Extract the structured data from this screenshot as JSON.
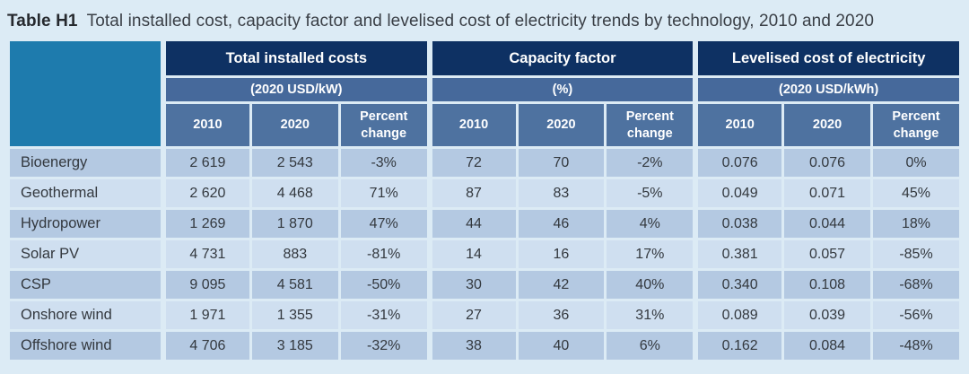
{
  "title": {
    "label": "Table H1",
    "text": "Total installed cost, capacity factor and levelised cost of electricity trends by technology, 2010 and 2020"
  },
  "colors": {
    "page_bg": "#dcebf5",
    "corner_cell_bg": "#1e7bad",
    "group_header_bg": "#0e3163",
    "unit_row_bg": "#46699b",
    "subheader_bg": "#4e72a0",
    "row_dark_bg": "#b4c9e2",
    "row_light_bg": "#cfdff0",
    "header_text": "#ffffff",
    "body_text": "#33383e"
  },
  "table": {
    "groups": [
      {
        "label": "Total installed costs",
        "unit": "(2020 USD/kW)"
      },
      {
        "label": "Capacity factor",
        "unit": "(%)"
      },
      {
        "label": "Levelised cost of electricity",
        "unit": "(2020 USD/kWh)"
      }
    ],
    "subheaders": [
      "2010",
      "2020",
      "Percent change"
    ],
    "rows": [
      {
        "name": "Bioenergy",
        "values": [
          "2 619",
          "2 543",
          "-3%",
          "72",
          "70",
          "-2%",
          "0.076",
          "0.076",
          "0%"
        ]
      },
      {
        "name": "Geothermal",
        "values": [
          "2 620",
          "4 468",
          "71%",
          "87",
          "83",
          "-5%",
          "0.049",
          "0.071",
          "45%"
        ]
      },
      {
        "name": "Hydropower",
        "values": [
          "1 269",
          "1 870",
          "47%",
          "44",
          "46",
          "4%",
          "0.038",
          "0.044",
          "18%"
        ]
      },
      {
        "name": "Solar PV",
        "values": [
          "4 731",
          "883",
          "-81%",
          "14",
          "16",
          "17%",
          "0.381",
          "0.057",
          "-85%"
        ]
      },
      {
        "name": "CSP",
        "values": [
          "9 095",
          "4 581",
          "-50%",
          "30",
          "42",
          "40%",
          "0.340",
          "0.108",
          "-68%"
        ]
      },
      {
        "name": "Onshore wind",
        "values": [
          "1 971",
          "1 355",
          "-31%",
          "27",
          "36",
          "31%",
          "0.089",
          "0.039",
          "-56%"
        ]
      },
      {
        "name": "Offshore wind",
        "values": [
          "4 706",
          "3 185",
          "-32%",
          "38",
          "40",
          "6%",
          "0.162",
          "0.084",
          "-48%"
        ]
      }
    ]
  }
}
